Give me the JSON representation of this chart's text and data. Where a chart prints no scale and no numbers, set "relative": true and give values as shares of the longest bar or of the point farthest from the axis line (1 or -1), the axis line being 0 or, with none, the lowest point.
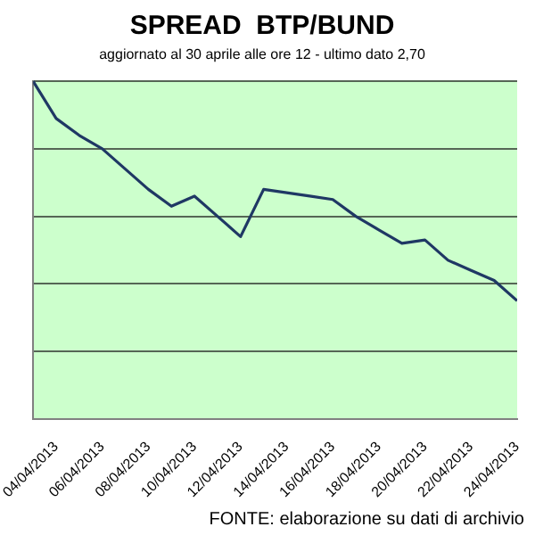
{
  "chart_data": {
    "type": "line",
    "title": "SPREAD  BTP/BUND",
    "subtitle": "aggiornato al 30 aprile alle ore 12 - ultimo dato 2,70",
    "relative": true,
    "x": [
      "2013-04-03",
      "2013-04-04",
      "2013-04-05",
      "2013-04-06",
      "2013-04-07",
      "2013-04-08",
      "2013-04-09",
      "2013-04-10",
      "2013-04-11",
      "2013-04-12",
      "2013-04-13",
      "2013-04-14",
      "2013-04-15",
      "2013-04-16",
      "2013-04-17",
      "2013-04-18",
      "2013-04-19",
      "2013-04-20",
      "2013-04-21",
      "2013-04-22",
      "2013-04-23",
      "2013-04-24"
    ],
    "series": [
      {
        "color": "#1f3864",
        "values": [
          1.0,
          0.89,
          0.84,
          0.8,
          0.74,
          0.68,
          0.63,
          0.66,
          0.6,
          0.54,
          0.68,
          0.67,
          0.66,
          0.65,
          0.6,
          0.56,
          0.52,
          0.53,
          0.47,
          0.44,
          0.41,
          0.35
        ]
      }
    ],
    "xlim": [
      "2013-04-03",
      "2013-04-24"
    ],
    "xticks": [
      {
        "value": "2013-04-04",
        "label": "04/04/2013"
      },
      {
        "value": "2013-04-06",
        "label": "06/04/2013"
      },
      {
        "value": "2013-04-08",
        "label": "08/04/2013"
      },
      {
        "value": "2013-04-10",
        "label": "10/04/2013"
      },
      {
        "value": "2013-04-12",
        "label": "12/04/2013"
      },
      {
        "value": "2013-04-14",
        "label": "14/04/2013"
      },
      {
        "value": "2013-04-16",
        "label": "16/04/2013"
      },
      {
        "value": "2013-04-18",
        "label": "18/04/2013"
      },
      {
        "value": "2013-04-20",
        "label": "20/04/2013"
      },
      {
        "value": "2013-04-22",
        "label": "22/04/2013"
      },
      {
        "value": "2013-04-24",
        "label": "24/04/2013"
      }
    ],
    "annotations": [
      "FONTE: elaborazione su dati di archivio"
    ],
    "grid": "y",
    "legend": false,
    "marker": "none",
    "line_style": "solid"
  }
}
